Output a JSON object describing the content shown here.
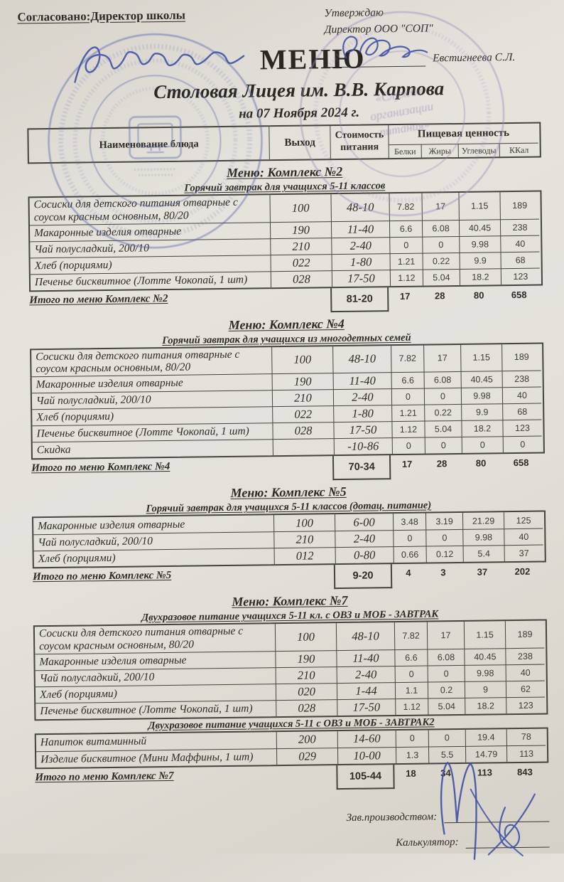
{
  "header": {
    "agreed": "Согласовано:Директор школы",
    "approve_line1": "Утверждаю",
    "approve_line2": "Директор ООО \"СОП\"",
    "approver_name": "Евстигнеева С.Л.",
    "title": "МЕНЮ",
    "subtitle": "Столовая Лицея им. В.В. Карпова",
    "date_line": "на 07 Ноября 2024 г."
  },
  "columns": {
    "name": "Наименование блюда",
    "output": "Выход",
    "cost1": "Стоимость",
    "cost2": "питания",
    "nutrition": "Пищевая ценность",
    "protein": "Белки",
    "fat": "Жиры",
    "carbs": "Углеводы",
    "kcal": "ККал"
  },
  "sections": [
    {
      "title": "Меню: Комплекс №2",
      "groups": [
        {
          "subtitle": "Горячий завтрак для учащихся 5-11 классов",
          "rows": [
            {
              "name": "Сосиски для детского питания отварные с соусом красным основным, 80/20",
              "out": "100",
              "cost": "48-10",
              "p": "7.82",
              "f": "17",
              "c": "1.15",
              "k": "189"
            },
            {
              "name": "Макаронные изделия отварные",
              "out": "190",
              "cost": "11-40",
              "p": "6.6",
              "f": "6.08",
              "c": "40.45",
              "k": "238"
            },
            {
              "name": "Чай полусладкий, 200/10",
              "out": "210",
              "cost": "2-40",
              "p": "0",
              "f": "0",
              "c": "9.98",
              "k": "40"
            },
            {
              "name": "Хлеб (порциями)",
              "out": "022",
              "cost": "1-80",
              "p": "1.21",
              "f": "0.22",
              "c": "9.9",
              "k": "68"
            },
            {
              "name": "Печенье бисквитное (Лотте Чокопай, 1 шт)",
              "out": "028",
              "cost": "17-50",
              "p": "1.12",
              "f": "5.04",
              "c": "18.2",
              "k": "123"
            }
          ]
        }
      ],
      "total": {
        "label": "Итого по меню Комплекс №2",
        "cost": "81-20",
        "p": "17",
        "f": "28",
        "c": "80",
        "k": "658"
      }
    },
    {
      "title": "Меню: Комплекс №4",
      "groups": [
        {
          "subtitle": "Горячий завтрак для учащихся из многодетных семей",
          "rows": [
            {
              "name": "Сосиски для детского питания отварные с соусом красным основным, 80/20",
              "out": "100",
              "cost": "48-10",
              "p": "7.82",
              "f": "17",
              "c": "1.15",
              "k": "189"
            },
            {
              "name": "Макаронные изделия отварные",
              "out": "190",
              "cost": "11-40",
              "p": "6.6",
              "f": "6.08",
              "c": "40.45",
              "k": "238"
            },
            {
              "name": "Чай полусладкий, 200/10",
              "out": "210",
              "cost": "2-40",
              "p": "0",
              "f": "0",
              "c": "9.98",
              "k": "40"
            },
            {
              "name": "Хлеб (порциями)",
              "out": "022",
              "cost": "1-80",
              "p": "1.21",
              "f": "0.22",
              "c": "9.9",
              "k": "68"
            },
            {
              "name": "Печенье бисквитное (Лотте Чокопай, 1 шт)",
              "out": "028",
              "cost": "17-50",
              "p": "1.12",
              "f": "5.04",
              "c": "18.2",
              "k": "123"
            },
            {
              "name": "Скидка",
              "out": "",
              "cost": "-10-86",
              "p": "0",
              "f": "0",
              "c": "0",
              "k": "0"
            }
          ]
        }
      ],
      "total": {
        "label": "Итого по меню Комплекс №4",
        "cost": "70-34",
        "p": "17",
        "f": "28",
        "c": "80",
        "k": "658"
      }
    },
    {
      "title": "Меню: Комплекс №5",
      "groups": [
        {
          "subtitle": "Горячий завтрак для учащихся 5-11 классов (дотац. питание)",
          "rows": [
            {
              "name": "Макаронные изделия отварные",
              "out": "100",
              "cost": "6-00",
              "p": "3.48",
              "f": "3.19",
              "c": "21.29",
              "k": "125"
            },
            {
              "name": "Чай полусладкий, 200/10",
              "out": "210",
              "cost": "2-40",
              "p": "0",
              "f": "0",
              "c": "9.98",
              "k": "40"
            },
            {
              "name": "Хлеб (порциями)",
              "out": "012",
              "cost": "0-80",
              "p": "0.66",
              "f": "0.12",
              "c": "5.4",
              "k": "37"
            }
          ]
        }
      ],
      "total": {
        "label": "Итого по меню Комплекс №5",
        "cost": "9-20",
        "p": "4",
        "f": "3",
        "c": "37",
        "k": "202"
      }
    },
    {
      "title": "Меню: Комплекс №7",
      "groups": [
        {
          "subtitle": "Двухразовое питание учащихся 5-11 кл. с  ОВЗ и МОБ - ЗАВТРАК",
          "rows": [
            {
              "name": "Сосиски для детского питания отварные с соусом красным основным, 80/20",
              "out": "100",
              "cost": "48-10",
              "p": "7.82",
              "f": "17",
              "c": "1.15",
              "k": "189"
            },
            {
              "name": "Макаронные изделия отварные",
              "out": "190",
              "cost": "11-40",
              "p": "6.6",
              "f": "6.08",
              "c": "40.45",
              "k": "238"
            },
            {
              "name": "Чай полусладкий, 200/10",
              "out": "210",
              "cost": "2-40",
              "p": "0",
              "f": "0",
              "c": "9.98",
              "k": "40"
            },
            {
              "name": "Хлеб (порциями)",
              "out": "020",
              "cost": "1-44",
              "p": "1.1",
              "f": "0.2",
              "c": "9",
              "k": "62"
            },
            {
              "name": "Печенье бисквитное (Лотте Чокопай, 1 шт)",
              "out": "028",
              "cost": "17-50",
              "p": "1.12",
              "f": "5.04",
              "c": "18.2",
              "k": "123"
            }
          ]
        },
        {
          "subtitle": "Двухразовое питание учащихся 5-11 с ОВЗ и МОБ - ЗАВТРАК2",
          "rows": [
            {
              "name": "Напиток витаминный",
              "out": "200",
              "cost": "14-60",
              "p": "0",
              "f": "0",
              "c": "19.4",
              "k": "78"
            },
            {
              "name": "Изделие бисквитное (Мини Маффины, 1 шт)",
              "out": "029",
              "cost": "10-00",
              "p": "1.3",
              "f": "5.5",
              "c": "14.79",
              "k": "113"
            }
          ]
        }
      ],
      "total": {
        "label": "Итого по меню Комплекс №7",
        "cost": "105-44",
        "p": "18",
        "f": "34",
        "c": "113",
        "k": "843"
      }
    }
  ],
  "stamps": {
    "right": {
      "line1": "«Служба",
      "line2": "организации",
      "line3": "питания»"
    }
  },
  "footer": {
    "label1": "Зав.производством:",
    "label2": "Калькулятор:"
  }
}
